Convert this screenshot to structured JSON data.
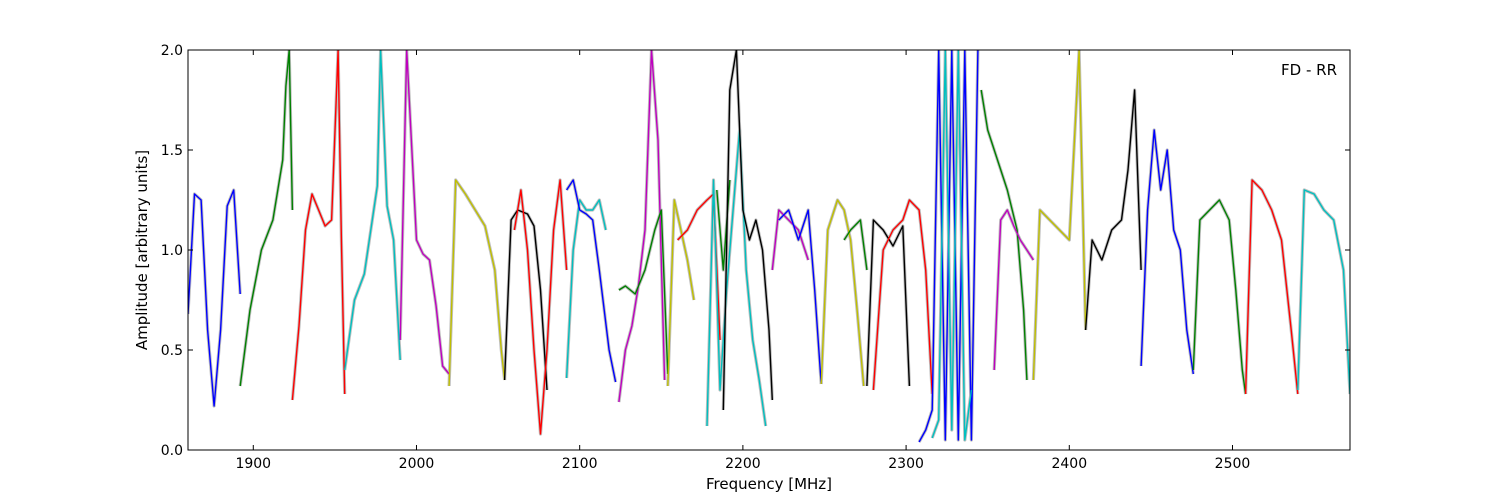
{
  "chart_data": {
    "type": "line",
    "annotation": "FD - RR",
    "xlabel": "Frequency [MHz]",
    "ylabel": "Amplitude [arbitrary units]",
    "xlim": [
      1860,
      2572
    ],
    "ylim": [
      0.0,
      2.0
    ],
    "xticks": [
      1900,
      2000,
      2100,
      2200,
      2300,
      2400,
      2500
    ],
    "xtick_labels": [
      "1900",
      "2000",
      "2100",
      "2200",
      "2300",
      "2400",
      "2500"
    ],
    "yticks": [
      0.0,
      0.5,
      1.0,
      1.5,
      2.0
    ],
    "ytick_labels": [
      "0.0",
      "0.5",
      "1.0",
      "1.5",
      "2.0"
    ],
    "grid": false,
    "legend": "none",
    "background_trace_color": "#c0c0c0",
    "series": [
      {
        "color": "#0000ff",
        "x": [
          1860,
          1864,
          1868,
          1872,
          1876,
          1880,
          1884,
          1888,
          1892
        ],
        "y": [
          0.68,
          1.28,
          1.25,
          0.6,
          0.22,
          0.6,
          1.22,
          1.3,
          0.78
        ]
      },
      {
        "color": "#008000",
        "x": [
          1892,
          1898,
          1905,
          1912,
          1918,
          1920,
          1922,
          1924
        ],
        "y": [
          0.32,
          0.7,
          1.0,
          1.15,
          1.45,
          1.82,
          2.0,
          1.2
        ]
      },
      {
        "color": "#ff0000",
        "x": [
          1924,
          1928,
          1932,
          1936,
          1940,
          1944,
          1948,
          1952,
          1954,
          1956
        ],
        "y": [
          0.25,
          0.62,
          1.1,
          1.28,
          1.2,
          1.12,
          1.15,
          2.0,
          1.05,
          0.28
        ]
      },
      {
        "color": "#00bfbf",
        "x": [
          1956,
          1962,
          1968,
          1972,
          1976,
          1978,
          1982,
          1986,
          1990
        ],
        "y": [
          0.4,
          0.75,
          0.88,
          1.1,
          1.32,
          2.0,
          1.22,
          1.05,
          0.45
        ]
      },
      {
        "color": "#bf00bf",
        "x": [
          1990,
          1994,
          2000,
          2004,
          2008,
          2012,
          2016,
          2020
        ],
        "y": [
          0.55,
          2.0,
          1.05,
          0.98,
          0.95,
          0.72,
          0.42,
          0.38
        ]
      },
      {
        "color": "#bfbf00",
        "x": [
          2020,
          2024,
          2030,
          2036,
          2042,
          2048,
          2052,
          2054
        ],
        "y": [
          0.32,
          1.35,
          1.28,
          1.2,
          1.12,
          0.9,
          0.5,
          0.35
        ]
      },
      {
        "color": "#000000",
        "x": [
          2054,
          2058,
          2062,
          2068,
          2072,
          2076,
          2080
        ],
        "y": [
          0.35,
          1.15,
          1.2,
          1.18,
          1.12,
          0.8,
          0.3
        ]
      },
      {
        "color": "#ff0000",
        "x": [
          2060,
          2064,
          2068,
          2072,
          2076,
          2080,
          2084,
          2088,
          2092
        ],
        "y": [
          1.1,
          1.3,
          1.0,
          0.5,
          0.08,
          0.5,
          1.1,
          1.35,
          0.9
        ]
      },
      {
        "color": "#00bfbf",
        "x": [
          2092,
          2096,
          2100,
          2104,
          2108,
          2112,
          2116
        ],
        "y": [
          0.36,
          1.0,
          1.25,
          1.2,
          1.2,
          1.25,
          1.1
        ]
      },
      {
        "color": "#0000ff",
        "x": [
          2092,
          2096,
          2100,
          2104,
          2108,
          2112,
          2118,
          2122
        ],
        "y": [
          1.3,
          1.35,
          1.2,
          1.18,
          1.15,
          0.9,
          0.5,
          0.34
        ]
      },
      {
        "color": "#bf00bf",
        "x": [
          2124,
          2128,
          2132,
          2136,
          2140,
          2144,
          2148,
          2152
        ],
        "y": [
          0.24,
          0.5,
          0.62,
          0.82,
          1.1,
          2.0,
          1.55,
          0.35
        ]
      },
      {
        "color": "#008000",
        "x": [
          2124,
          2128,
          2134,
          2140,
          2146,
          2150,
          2154
        ],
        "y": [
          0.8,
          0.82,
          0.78,
          0.9,
          1.1,
          1.2,
          0.38
        ]
      },
      {
        "color": "#bfbf00",
        "x": [
          2154,
          2158,
          2162,
          2166,
          2170
        ],
        "y": [
          0.32,
          1.25,
          1.1,
          0.95,
          0.75
        ]
      },
      {
        "color": "#ff0000",
        "x": [
          2160,
          2166,
          2172,
          2178,
          2182,
          2186
        ],
        "y": [
          1.05,
          1.1,
          1.2,
          1.25,
          1.28,
          0.55
        ]
      },
      {
        "color": "#00bfbf",
        "x": [
          2178,
          2182,
          2186,
          2190,
          2194,
          2198,
          2202,
          2206,
          2210,
          2214
        ],
        "y": [
          0.12,
          1.35,
          0.3,
          0.8,
          1.2,
          1.6,
          0.9,
          0.55,
          0.35,
          0.12
        ]
      },
      {
        "color": "#008000",
        "x": [
          2184,
          2188,
          2192
        ],
        "y": [
          1.3,
          0.9,
          1.35
        ]
      },
      {
        "color": "#000000",
        "x": [
          2188,
          2192,
          2196,
          2200,
          2204,
          2208,
          2212,
          2216,
          2218
        ],
        "y": [
          0.2,
          1.8,
          2.0,
          1.2,
          1.05,
          1.15,
          1.0,
          0.6,
          0.25
        ]
      },
      {
        "color": "#bf00bf",
        "x": [
          2218,
          2222,
          2228,
          2234,
          2240
        ],
        "y": [
          0.9,
          1.2,
          1.15,
          1.1,
          0.95
        ]
      },
      {
        "color": "#0000ff",
        "x": [
          2222,
          2228,
          2234,
          2240,
          2244,
          2248
        ],
        "y": [
          1.15,
          1.2,
          1.05,
          1.2,
          0.8,
          0.33
        ]
      },
      {
        "color": "#bfbf00",
        "x": [
          2248,
          2252,
          2258,
          2262,
          2266,
          2270,
          2274
        ],
        "y": [
          0.33,
          1.1,
          1.25,
          1.2,
          1.05,
          0.7,
          0.32
        ]
      },
      {
        "color": "#008000",
        "x": [
          2262,
          2266,
          2272,
          2276
        ],
        "y": [
          1.05,
          1.1,
          1.15,
          0.9
        ]
      },
      {
        "color": "#000000",
        "x": [
          2276,
          2280,
          2286,
          2292,
          2298,
          2302
        ],
        "y": [
          0.32,
          1.15,
          1.1,
          1.02,
          1.12,
          0.32
        ]
      },
      {
        "color": "#ff0000",
        "x": [
          2280,
          2286,
          2292,
          2298,
          2302,
          2308,
          2312,
          2316
        ],
        "y": [
          0.3,
          1.0,
          1.1,
          1.15,
          1.25,
          1.2,
          0.9,
          0.28
        ]
      },
      {
        "color": "#0000ff",
        "x": [
          2308,
          2312,
          2316,
          2320,
          2324,
          2328,
          2332,
          2336,
          2340,
          2344
        ],
        "y": [
          0.04,
          0.1,
          0.2,
          2.0,
          0.05,
          2.0,
          0.05,
          2.0,
          0.05,
          2.0
        ]
      },
      {
        "color": "#00bfbf",
        "x": [
          2316,
          2320,
          2324,
          2328,
          2332,
          2336,
          2340
        ],
        "y": [
          0.06,
          0.15,
          2.0,
          0.1,
          2.0,
          0.05,
          0.3
        ]
      },
      {
        "color": "#008000",
        "x": [
          2346,
          2350,
          2356,
          2362,
          2368,
          2372,
          2374
        ],
        "y": [
          1.8,
          1.6,
          1.45,
          1.3,
          1.1,
          0.7,
          0.35
        ]
      },
      {
        "color": "#bf00bf",
        "x": [
          2354,
          2358,
          2362,
          2366,
          2370,
          2374,
          2378
        ],
        "y": [
          0.4,
          1.15,
          1.2,
          1.12,
          1.05,
          1.0,
          0.95
        ]
      },
      {
        "color": "#bfbf00",
        "x": [
          2378,
          2382,
          2388,
          2394,
          2400,
          2406,
          2410
        ],
        "y": [
          0.35,
          1.2,
          1.15,
          1.1,
          1.05,
          2.0,
          0.6
        ]
      },
      {
        "color": "#000000",
        "x": [
          2410,
          2414,
          2420,
          2426,
          2432,
          2436,
          2440,
          2444
        ],
        "y": [
          0.6,
          1.05,
          0.95,
          1.1,
          1.15,
          1.4,
          1.8,
          0.9
        ]
      },
      {
        "color": "#0000ff",
        "x": [
          2444,
          2448,
          2452,
          2456,
          2460,
          2464,
          2468,
          2472,
          2476
        ],
        "y": [
          0.42,
          1.2,
          1.6,
          1.3,
          1.5,
          1.1,
          1.0,
          0.6,
          0.38
        ]
      },
      {
        "color": "#008000",
        "x": [
          2476,
          2480,
          2486,
          2492,
          2498,
          2502,
          2506,
          2508
        ],
        "y": [
          0.4,
          1.15,
          1.2,
          1.25,
          1.15,
          0.8,
          0.4,
          0.28
        ]
      },
      {
        "color": "#ff0000",
        "x": [
          2508,
          2512,
          2518,
          2524,
          2530,
          2536,
          2540
        ],
        "y": [
          0.28,
          1.35,
          1.3,
          1.2,
          1.05,
          0.6,
          0.28
        ]
      },
      {
        "color": "#00bfbf",
        "x": [
          2540,
          2544,
          2550,
          2556,
          2562,
          2568,
          2572
        ],
        "y": [
          0.3,
          1.3,
          1.28,
          1.2,
          1.15,
          0.9,
          0.28
        ]
      }
    ]
  }
}
